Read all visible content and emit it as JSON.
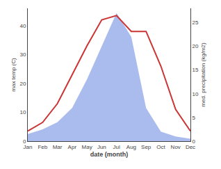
{
  "chart_data": {
    "type": "line",
    "categories": [
      "Jan",
      "Feb",
      "Mar",
      "Apr",
      "May",
      "Jun",
      "Jul",
      "Aug",
      "Sep",
      "Oct",
      "Nov",
      "Dec"
    ],
    "series": [
      {
        "type": "area",
        "color": "#aabbee",
        "axis": "y2",
        "values": [
          1.5,
          2.5,
          4.0,
          7.0,
          13.0,
          20.0,
          27.0,
          22.0,
          7.0,
          2.0,
          1.0,
          0.5
        ]
      },
      {
        "type": "line",
        "color": "#cc3333",
        "values": [
          3.5,
          6.5,
          13.0,
          23.0,
          33.0,
          42.0,
          43.5,
          38.0,
          38.0,
          26.0,
          11.0,
          3.5
        ]
      }
    ],
    "xlabel": "date (month)",
    "ylabel": "max temp (C)",
    "y2label": "med. precipitation (kg/m2)",
    "ylim": [
      0,
      46
    ],
    "yticks": [
      0,
      10,
      20,
      30,
      40
    ],
    "y2lim": [
      0,
      28
    ],
    "y2ticks": [
      0,
      5,
      10,
      15,
      20,
      25
    ],
    "grid": false
  }
}
